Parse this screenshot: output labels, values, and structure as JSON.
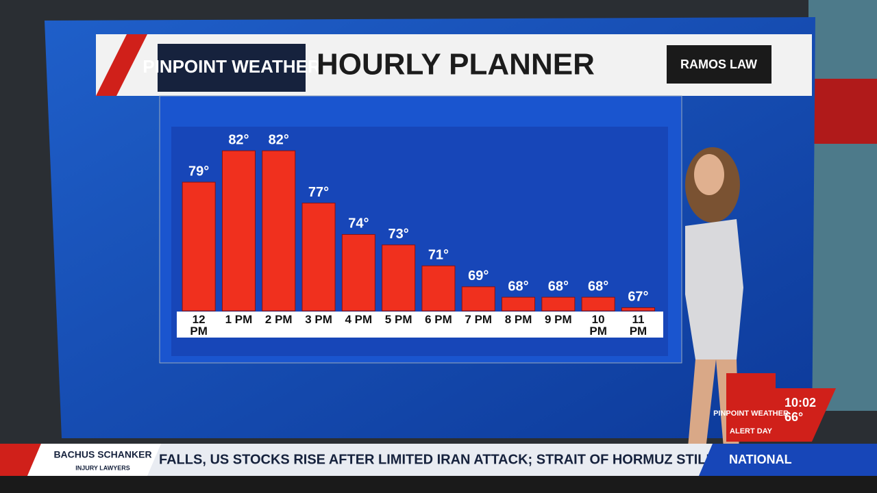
{
  "header": {
    "brand": "PINPOINT WEATHER",
    "title": "HOURLY PLANNER",
    "sponsor": "RAMOS LAW"
  },
  "chart_data": {
    "type": "bar",
    "categories": [
      "12 PM",
      "1 PM",
      "2 PM",
      "3 PM",
      "4 PM",
      "5 PM",
      "6 PM",
      "7 PM",
      "8 PM",
      "9 PM",
      "10 PM",
      "11 PM"
    ],
    "values": [
      79,
      82,
      82,
      77,
      74,
      73,
      71,
      69,
      68,
      68,
      68,
      67
    ],
    "value_labels": [
      "79°",
      "82°",
      "82°",
      "77°",
      "74°",
      "73°",
      "71°",
      "69°",
      "68°",
      "68°",
      "68°",
      "67°"
    ],
    "color": "#f0301e",
    "ylim": [
      66.7,
      82.8
    ]
  },
  "bug": {
    "brand": "PINPOINT WEATHER",
    "alert": "ALERT DAY",
    "time": "10:02",
    "temp": "66°"
  },
  "ticker": {
    "sponsor": "BACHUS SCHANKER",
    "sponsor_sub": "INJURY LAWYERS",
    "headline": "FALLS, US STOCKS RISE AFTER LIMITED IRAN ATTACK; STRAIT OF HORMUZ STILL C",
    "section": "NATIONAL"
  }
}
